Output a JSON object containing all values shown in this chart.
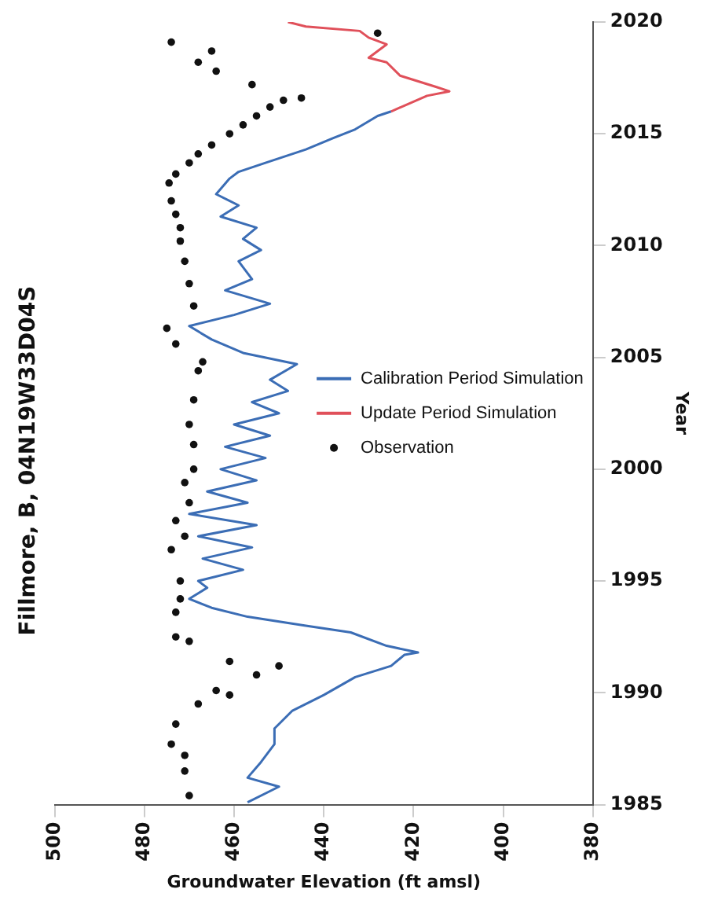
{
  "chart_data": {
    "type": "line",
    "title": "Fillmore, B, 04N19W33D04S",
    "xlabel": "Groundwater Elevation (ft amsl)",
    "ylabel": "Year",
    "xlim": [
      500,
      380
    ],
    "xticks": [
      500,
      480,
      460,
      440,
      420,
      400,
      380
    ],
    "ylim": [
      1985,
      2020
    ],
    "yticks": [
      1985,
      1990,
      1995,
      2000,
      2005,
      2010,
      2015,
      2020
    ],
    "grid": false,
    "legend": "right",
    "series": [
      {
        "name": "Calibration Period Simulation",
        "type": "line",
        "color": "#3b6db5",
        "values": [
          1985.1,
          1985.8,
          1986.2,
          1986.9,
          1987.7,
          1988.4,
          1989.2,
          1989.9,
          1990.7,
          1991.2,
          1991.7,
          1991.8,
          1992.1,
          1992.7,
          1993.0,
          1993.4,
          1993.8,
          1994.2,
          1994.7,
          1995.0,
          1995.5,
          1996.0,
          1996.5,
          1997.0,
          1997.5,
          1998.0,
          1998.5,
          1999.0,
          1999.5,
          2000.0,
          2000.5,
          2001.0,
          2001.5,
          2002.0,
          2002.5,
          2003.0,
          2003.5,
          2004.0,
          2004.7,
          2005.2,
          2005.8,
          2006.4,
          2006.9,
          2007.4,
          2008.0,
          2008.5,
          2009.3,
          2009.8,
          2010.3,
          2010.8,
          2011.3,
          2011.8,
          2012.3,
          2013.0,
          2013.3,
          2013.7,
          2014.3,
          2014.8,
          2015.2,
          2015.8,
          2016.0
        ],
        "x": [
          457,
          450,
          457,
          454,
          451,
          451,
          447,
          440,
          433,
          425,
          422,
          419,
          426,
          434,
          444,
          457,
          465,
          470,
          466,
          468,
          458,
          467,
          456,
          468,
          455,
          470,
          457,
          466,
          455,
          463,
          453,
          462,
          452,
          460,
          450,
          456,
          448,
          452,
          446,
          458,
          465,
          470,
          460,
          452,
          462,
          456,
          459,
          454,
          458,
          455,
          463,
          459,
          464,
          461,
          459,
          453,
          444,
          438,
          433,
          428,
          425
        ]
      },
      {
        "name": "Update Period Simulation",
        "type": "line",
        "color": "#e0505a",
        "values": [
          2016.0,
          2016.7,
          2016.9,
          2017.1,
          2017.6,
          2018.2,
          2018.4,
          2019.0,
          2019.3,
          2019.6,
          2019.8,
          2020.0
        ],
        "x": [
          425,
          417,
          412,
          415,
          423,
          426,
          430,
          426,
          430,
          432,
          444,
          448
        ]
      },
      {
        "name": "Observation",
        "type": "scatter",
        "color": "#111111",
        "marker": "circle",
        "values": [
          1985.4,
          1986.5,
          1987.2,
          1987.7,
          1988.6,
          1989.5,
          1989.9,
          1990.1,
          1990.8,
          1991.2,
          1991.4,
          1992.3,
          1992.5,
          1993.6,
          1994.2,
          1995.0,
          1996.4,
          1997.0,
          1997.7,
          1998.5,
          1999.4,
          2000.0,
          2001.1,
          2002.0,
          2003.1,
          2004.4,
          2004.8,
          2005.6,
          2006.3,
          2007.3,
          2008.3,
          2009.3,
          2010.2,
          2010.8,
          2011.4,
          2012.0,
          2012.8,
          2013.2,
          2013.7,
          2014.1,
          2014.5,
          2015.0,
          2015.4,
          2015.8,
          2016.2,
          2016.5,
          2016.6,
          2017.2,
          2017.8,
          2018.2,
          2018.7,
          2019.1,
          2019.5
        ],
        "x": [
          470,
          471,
          471,
          474,
          473,
          468,
          461,
          464,
          455,
          450,
          461,
          470,
          473,
          473,
          472,
          472,
          474,
          471,
          473,
          470,
          471,
          469,
          469,
          470,
          469,
          468,
          467,
          473,
          475,
          469,
          470,
          471,
          472,
          472,
          473,
          474,
          474.5,
          473,
          470,
          468,
          465,
          461,
          458,
          455,
          452,
          449,
          445,
          456,
          464,
          468,
          465,
          474,
          428
        ]
      }
    ]
  }
}
